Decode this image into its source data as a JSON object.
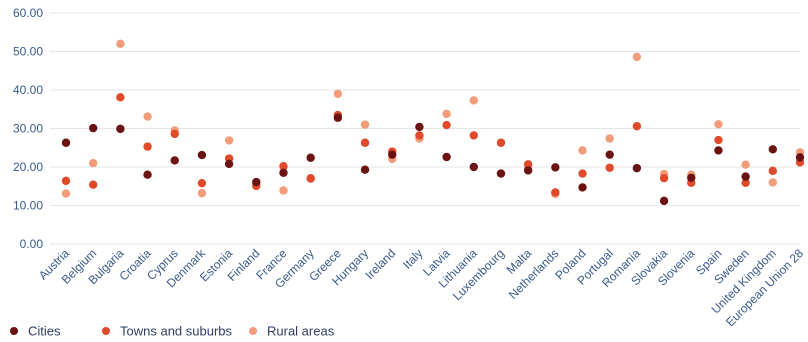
{
  "chart_data": {
    "type": "scatter",
    "ylim": [
      0,
      60
    ],
    "yticks": [
      "0.00",
      "10.00",
      "20.00",
      "30.00",
      "40.00",
      "50.00",
      "60.00"
    ],
    "yticks_values": [
      0,
      10,
      20,
      30,
      40,
      50,
      60
    ],
    "grid": true,
    "legend_position": "bottom-left",
    "categories": [
      "Austria",
      "Belgium",
      "Bulgaria",
      "Croatia",
      "Cyprus",
      "Denmark",
      "Estonia",
      "Finland",
      "France",
      "Germany",
      "Greece",
      "Hungary",
      "Ireland",
      "Italy",
      "Latvia",
      "Lithuania",
      "Luxembourg",
      "Malta",
      "Netherlands",
      "Poland",
      "Portugal",
      "Romania",
      "Slovakia",
      "Slovenia",
      "Spain",
      "Sweden",
      "United Kingdom",
      "European Union 28"
    ],
    "series": [
      {
        "name": "Cities",
        "color": "#6b1212",
        "values": [
          26.3,
          30.1,
          29.9,
          18.0,
          21.7,
          23.1,
          20.8,
          16.1,
          18.5,
          22.4,
          32.8,
          19.3,
          23.2,
          30.4,
          22.6,
          20.0,
          18.3,
          19.1,
          19.9,
          14.7,
          23.2,
          19.7,
          11.2,
          17.2,
          24.3,
          17.5,
          24.6,
          22.5
        ]
      },
      {
        "name": "Towns and suburbs",
        "color": "#e04a2a",
        "values": [
          16.4,
          15.4,
          38.1,
          25.3,
          28.6,
          15.8,
          22.2,
          15.1,
          20.2,
          17.1,
          33.5,
          26.3,
          24.0,
          28.2,
          30.9,
          28.2,
          26.3,
          20.7,
          13.4,
          18.3,
          19.8,
          30.6,
          17.1,
          15.9,
          27.0,
          15.9,
          19.0,
          21.2
        ]
      },
      {
        "name": "Rural areas",
        "color": "#f39c7a",
        "values": [
          13.1,
          21.0,
          52.0,
          33.1,
          29.5,
          13.2,
          26.9,
          15.5,
          13.9,
          16.9,
          39.0,
          31.0,
          22.1,
          27.4,
          33.8,
          37.3,
          18.3,
          20.0,
          13.0,
          24.3,
          27.4,
          48.6,
          18.2,
          18.0,
          31.1,
          20.6,
          16.0,
          23.8
        ]
      }
    ]
  },
  "legend": {
    "items": [
      {
        "label": "Cities",
        "color": "#6b1212"
      },
      {
        "label": "Towns and suburbs",
        "color": "#e04a2a"
      },
      {
        "label": "Rural areas",
        "color": "#f39c7a"
      }
    ]
  }
}
